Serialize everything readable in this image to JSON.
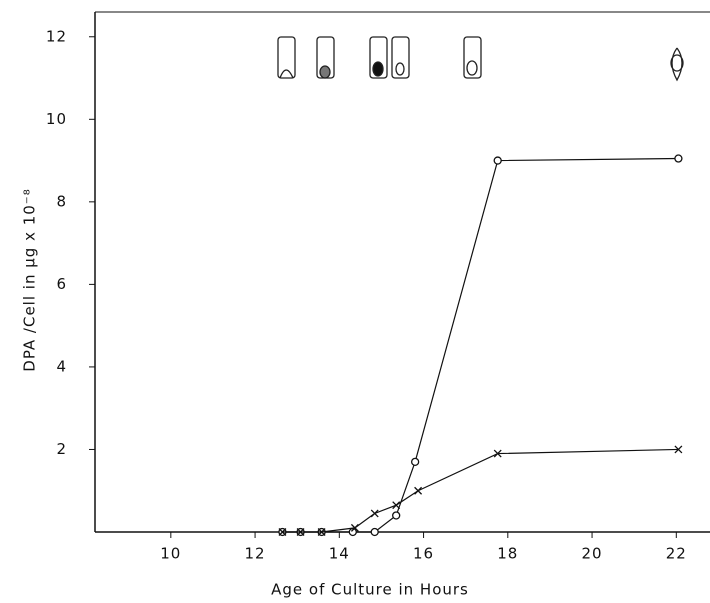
{
  "chart_data": {
    "type": "line",
    "x_label": "Age of Culture in Hours",
    "y_label": "DPA /Cell in μg x 10⁻⁸",
    "xlim": [
      8.2,
      22.8
    ],
    "xticks": [
      10,
      12,
      14,
      16,
      18,
      20,
      22
    ],
    "ylim": [
      0,
      12.6
    ],
    "yticks": [
      2,
      4,
      6,
      8,
      10,
      12
    ],
    "series": [
      {
        "marker": "o",
        "color": "#111",
        "x": [
          12.65,
          13.08,
          13.58,
          14.32,
          14.84,
          15.35,
          15.8,
          17.76,
          22.05
        ],
        "values": [
          0,
          0,
          0,
          0,
          0,
          0.4,
          1.7,
          9.0,
          9.05
        ]
      },
      {
        "marker": "x",
        "color": "#111",
        "x": [
          12.65,
          13.08,
          13.58,
          14.37,
          14.84,
          15.35,
          15.87,
          17.76,
          22.05
        ],
        "values": [
          0,
          0,
          0,
          0.1,
          0.45,
          0.65,
          1.0,
          1.9,
          2.0
        ]
      }
    ]
  }
}
